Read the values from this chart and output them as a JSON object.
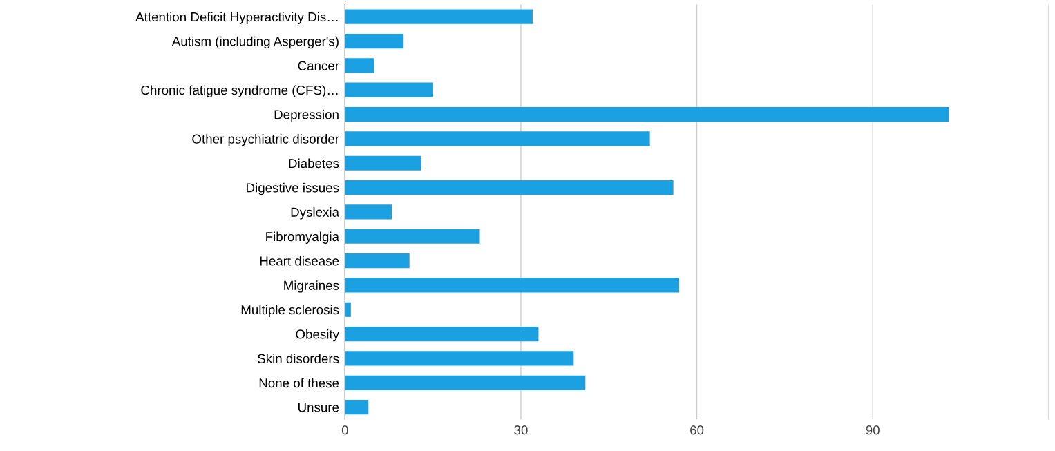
{
  "chart_data": {
    "type": "bar",
    "orientation": "horizontal",
    "categories": [
      "Attention Deficit Hyperactivity Dis…",
      "Autism (including Asperger's)",
      "Cancer",
      "Chronic fatigue syndrome (CFS)…",
      "Depression",
      "Other psychiatric disorder",
      "Diabetes",
      "Digestive issues",
      "Dyslexia",
      "Fibromyalgia",
      "Heart disease",
      "Migraines",
      "Multiple sclerosis",
      "Obesity",
      "Skin disorders",
      "None of these",
      "Unsure"
    ],
    "values": [
      32,
      10,
      5,
      15,
      103,
      52,
      13,
      56,
      8,
      23,
      11,
      57,
      1,
      33,
      39,
      41,
      4
    ],
    "color": "#1ba1e2",
    "xlim": [
      0,
      120
    ],
    "xticks": [
      0,
      30,
      60,
      90,
      {
        "value": 120,
        "label": null
      }
    ],
    "grid": "x",
    "legend": false
  }
}
